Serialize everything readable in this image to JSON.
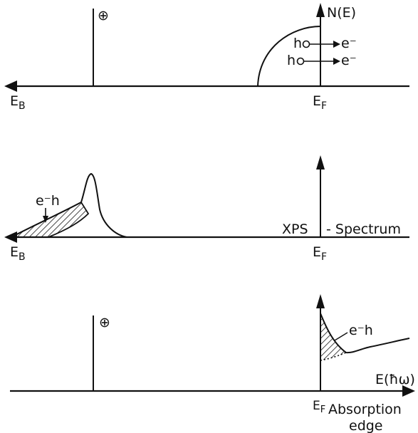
{
  "panel_top": {
    "core_level_symbol": "⊕",
    "dos_axis_label": "N(E)",
    "hole_1": "h",
    "hole_2": "h",
    "electron_1": "e⁻",
    "electron_2": "e⁻",
    "x_axis_label_base": "E",
    "x_axis_label_sub": "B",
    "fermi_label_base": "E",
    "fermi_label_sub": "F"
  },
  "panel_middle": {
    "pair_label": "e⁻h",
    "spectrum_label_left": "XPS",
    "spectrum_label_right": "- Spectrum",
    "x_axis_label_base": "E",
    "x_axis_label_sub": "B",
    "fermi_label_base": "E",
    "fermi_label_sub": "F"
  },
  "panel_bottom": {
    "core_level_symbol": "⊕",
    "pair_label": "e⁻h",
    "x_axis_label": "E(ħω)",
    "fermi_label_base": "E",
    "fermi_label_sub": "F",
    "edge_label_line1": "Absorption",
    "edge_label_line2": "edge"
  }
}
